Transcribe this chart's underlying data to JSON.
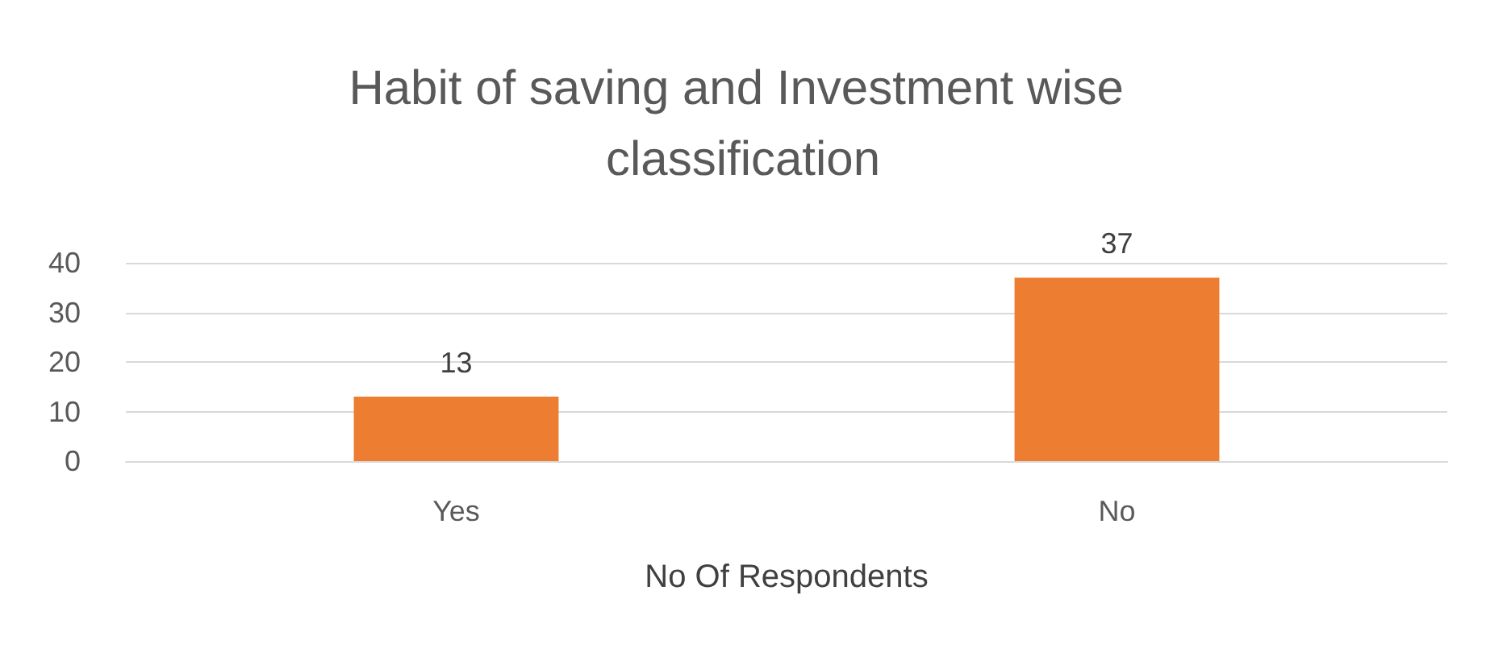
{
  "chart_data": {
    "type": "bar",
    "title": "Habit of saving and Investment wise classification",
    "xlabel": "No Of Respondents",
    "categories": [
      "Yes",
      "No"
    ],
    "values": [
      13,
      37
    ],
    "color": "#ed7d31",
    "ylim": [
      0,
      40
    ],
    "yticks": [
      0,
      10,
      20,
      30,
      40
    ],
    "grid": "y",
    "data_labels": true
  }
}
